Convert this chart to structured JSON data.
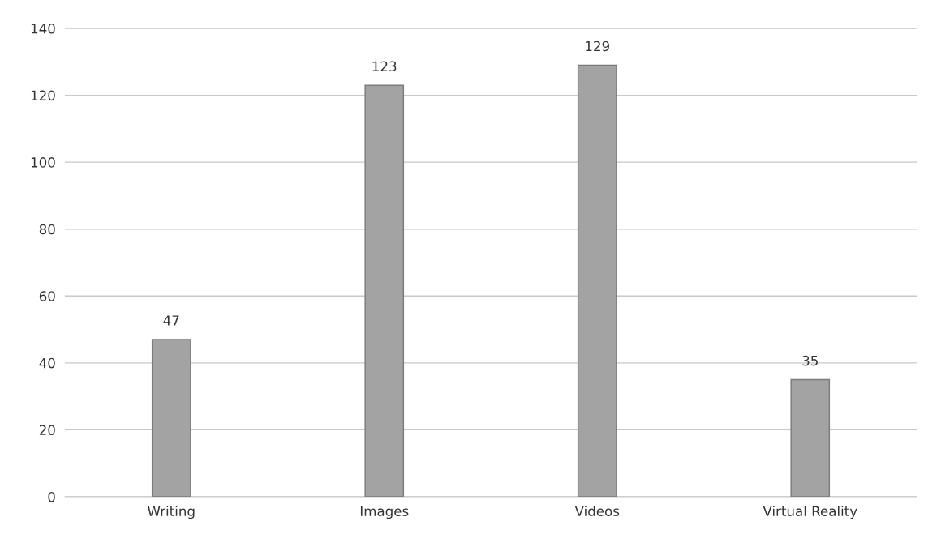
{
  "chart_data": {
    "type": "bar",
    "categories": [
      "Writing",
      "Images",
      "Videos",
      "Virtual Reality"
    ],
    "values": [
      47,
      123,
      129,
      35
    ],
    "color": "#a3a3a3",
    "ylim": [
      0,
      140
    ],
    "yticks": [
      0,
      20,
      40,
      60,
      80,
      100,
      120,
      140
    ],
    "grid": "y",
    "data_labels": true
  }
}
